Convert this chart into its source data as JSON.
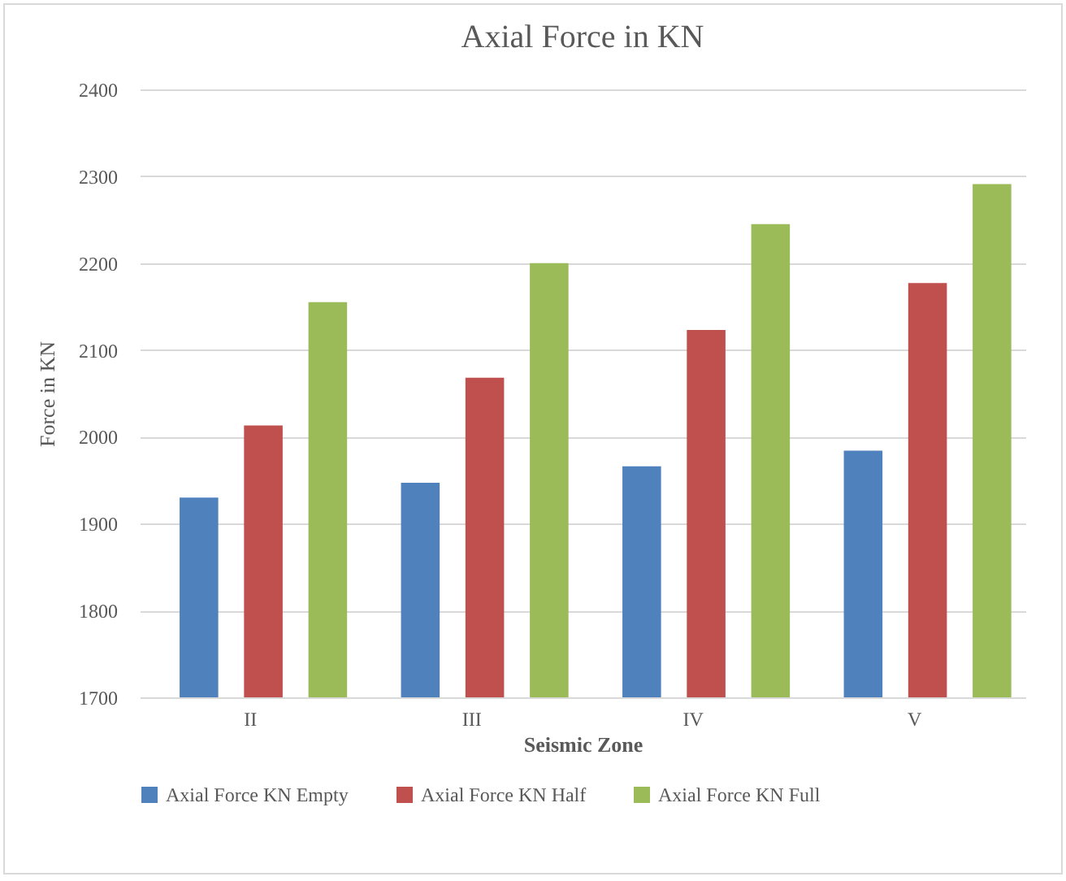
{
  "chart_data": {
    "type": "bar",
    "title": "Axial Force in KN",
    "xlabel": "Seismic Zone",
    "ylabel": "Force in KN",
    "categories": [
      "II",
      "III",
      "IV",
      "V"
    ],
    "series": [
      {
        "name": "Axial Force KN Empty",
        "color": "#4f81bd",
        "values": [
          1930,
          1947,
          1966,
          1984
        ]
      },
      {
        "name": "Axial Force KN Half",
        "color": "#c0504d",
        "values": [
          2013,
          2068,
          2123,
          2177
        ]
      },
      {
        "name": "Axial Force KN Full",
        "color": "#9bbb59",
        "values": [
          2155,
          2200,
          2245,
          2291
        ]
      }
    ],
    "ylim": [
      1700,
      2400
    ],
    "yticks": [
      1700,
      1800,
      1900,
      2000,
      2100,
      2200,
      2300,
      2400
    ],
    "grid": "y",
    "legend": "bottom"
  }
}
